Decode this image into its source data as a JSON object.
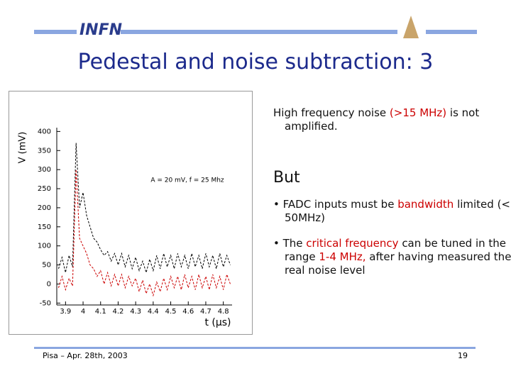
{
  "header": {
    "logo": "INFN",
    "title": "Pedestal and noise subtraction: 3"
  },
  "chart_data": {
    "type": "line",
    "x_label": "t (μs)",
    "y_label": "V (mV)",
    "annotation": "A = 20 mV, f = 25 Mhz",
    "x": [
      3.86,
      3.88,
      3.9,
      3.92,
      3.94,
      3.96,
      3.98,
      4.0,
      4.02,
      4.04,
      4.06,
      4.08,
      4.1,
      4.12,
      4.14,
      4.16,
      4.18,
      4.2,
      4.22,
      4.24,
      4.26,
      4.28,
      4.3,
      4.32,
      4.34,
      4.36,
      4.38,
      4.4,
      4.42,
      4.44,
      4.46,
      4.48,
      4.5,
      4.52,
      4.54,
      4.56,
      4.58,
      4.6,
      4.62,
      4.64,
      4.66,
      4.68,
      4.7,
      4.72,
      4.74,
      4.76,
      4.78,
      4.8,
      4.82,
      4.84
    ],
    "series": [
      {
        "color": "#000000",
        "values": [
          40,
          70,
          30,
          75,
          45,
          370,
          200,
          240,
          180,
          150,
          120,
          110,
          90,
          75,
          85,
          60,
          80,
          50,
          80,
          45,
          75,
          40,
          70,
          35,
          60,
          30,
          65,
          35,
          75,
          40,
          80,
          45,
          75,
          40,
          80,
          45,
          75,
          40,
          80,
          45,
          75,
          40,
          80,
          45,
          75,
          40,
          80,
          45,
          75,
          50
        ]
      },
      {
        "color": "#cc0000",
        "values": [
          -10,
          20,
          -15,
          15,
          -5,
          300,
          120,
          100,
          80,
          50,
          40,
          20,
          35,
          0,
          30,
          -5,
          25,
          -5,
          25,
          -10,
          20,
          -5,
          15,
          -20,
          10,
          -25,
          0,
          -30,
          5,
          -20,
          15,
          -15,
          20,
          -10,
          20,
          -15,
          25,
          -10,
          20,
          -15,
          25,
          -10,
          20,
          -15,
          25,
          -10,
          20,
          -15,
          25,
          0
        ]
      }
    ],
    "xlim": [
      3.85,
      4.85
    ],
    "ylim": [
      -55,
      410
    ],
    "xticks": [
      3.9,
      4,
      4.1,
      4.2,
      4.3,
      4.4,
      4.5,
      4.6,
      4.7,
      4.8
    ],
    "yticks": [
      400,
      350,
      300,
      250,
      200,
      150,
      100,
      50,
      0,
      -50
    ]
  },
  "body": {
    "intro": [
      "High frequency noise ",
      "(>15 MHz)",
      " is not amplified."
    ],
    "but": "But",
    "bullets": [
      [
        "FADC inputs must be ",
        "bandwidth",
        " limited (< 50MHz)"
      ],
      [
        "The ",
        "critical frequency",
        " can be tuned in the range ",
        "1-4 MHz,",
        " after having measured the real noise level"
      ]
    ]
  },
  "footer": {
    "left": "Pisa – Apr. 28th, 2003",
    "page": "19"
  }
}
